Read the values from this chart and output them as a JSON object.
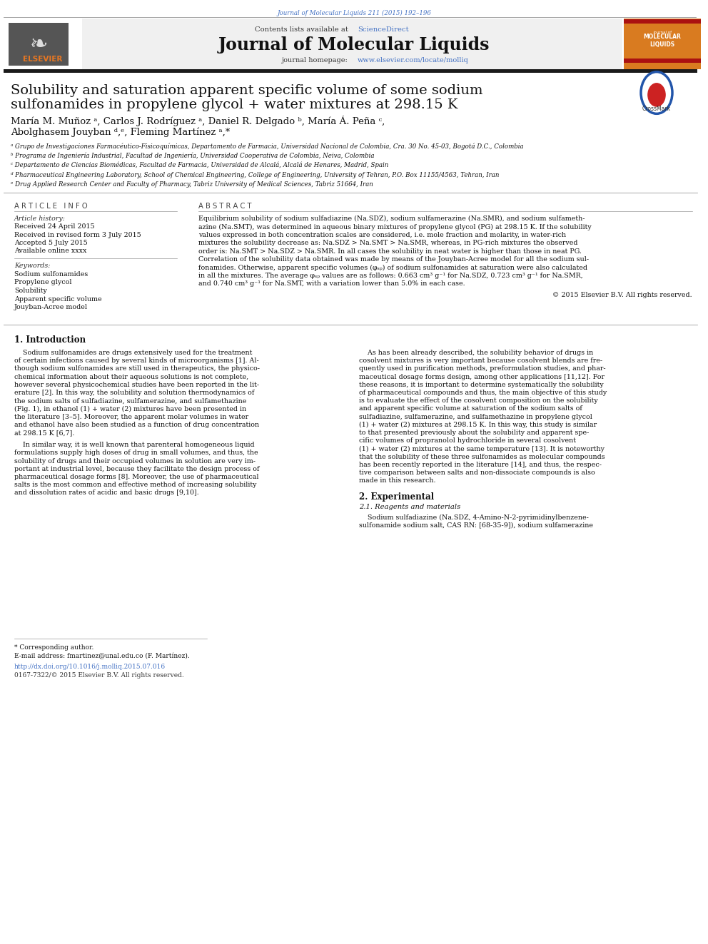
{
  "page_width": 9.92,
  "page_height": 13.23,
  "background_color": "#ffffff",
  "journal_ref": "Journal of Molecular Liquids 211 (2015) 192–196",
  "journal_ref_color": "#4472c4",
  "header_bg": "#e8e8e8",
  "header_text": "Contents lists available at",
  "sciencedirect_text": "ScienceDirect",
  "sciencedirect_color": "#4472c4",
  "journal_title": "Journal of Molecular Liquids",
  "journal_homepage_label": "journal homepage:",
  "journal_homepage_url": "www.elsevier.com/locate/molliq",
  "journal_homepage_color": "#4472c4",
  "article_title_line1": "Solubility and saturation apparent specific volume of some sodium",
  "article_title_line2": "sulfonamides in propylene glycol + water mixtures at 298.15 K",
  "authors_line1": "María M. Muñoz ᵃ, Carlos J. Rodríguez ᵃ, Daniel R. Delgado ᵇ, María Á. Peña ᶜ,",
  "authors_line2": "Abolghasem Jouyban ᵈ,ᵉ, Fleming Martínez ᵃ,*",
  "affil_a": "ᵃ Grupo de Investigaciones Farmacéutico-Fisicoquímicas, Departamento de Farmacia, Universidad Nacional de Colombia, Cra. 30 No. 45-03, Bogotá D.C., Colombia",
  "affil_b": "ᵇ Programa de Ingeniería Industrial, Facultad de Ingeniería, Universidad Cooperativa de Colombia, Neiva, Colombia",
  "affil_c": "ᶜ Departamento de Ciencias Biomédicas, Facultad de Farmacia, Universidad de Alcalá, Alcalá de Henares, Madrid, Spain",
  "affil_d": "ᵈ Pharmaceutical Engineering Laboratory, School of Chemical Engineering, College of Engineering, University of Tehran, P.O. Box 11155/4563, Tehran, Iran",
  "affil_e": "ᵉ Drug Applied Research Center and Faculty of Pharmacy, Tabriz University of Medical Sciences, Tabriz 51664, Iran",
  "article_info_header": "A R T I C L E   I N F O",
  "abstract_header": "A B S T R A C T",
  "article_history_label": "Article history:",
  "received": "Received 24 April 2015",
  "revised": "Received in revised form 3 July 2015",
  "accepted": "Accepted 5 July 2015",
  "available": "Available online xxxx",
  "keywords_label": "Keywords:",
  "kw1": "Sodium sulfonamides",
  "kw2": "Propylene glycol",
  "kw3": "Solubility",
  "kw4": "Apparent specific volume",
  "kw5": "Jouyban-Acree model",
  "abstract_lines": [
    "Equilibrium solubility of sodium sulfadiazine (Na.SDZ), sodium sulfamerazine (Na.SMR), and sodium sulfameth-",
    "azine (Na.SMT), was determined in aqueous binary mixtures of propylene glycol (PG) at 298.15 K. If the solubility",
    "values expressed in both concentration scales are considered, i.e. mole fraction and molarity, in water-rich",
    "mixtures the solubility decrease as: Na.SDZ > Na.SMT > Na.SMR, whereas, in PG-rich mixtures the observed",
    "order is: Na.SMT > Na.SDZ > Na.SMR. In all cases the solubility in neat water is higher than those in neat PG.",
    "Correlation of the solubility data obtained was made by means of the Jouyban-Acree model for all the sodium sul-",
    "fonamides. Otherwise, apparent specific volumes (φₛₚ) of sodium sulfonamides at saturation were also calculated",
    "in all the mixtures. The average φₛₚ values are as follows: 0.663 cm³ g⁻¹ for Na.SDZ, 0.723 cm³ g⁻¹ for Na.SMR,",
    "and 0.740 cm³ g⁻¹ for Na.SMT, with a variation lower than 5.0% in each case."
  ],
  "copyright": "© 2015 Elsevier B.V. All rights reserved.",
  "intro_header": "1. Introduction",
  "intro1_lines": [
    "    Sodium sulfonamides are drugs extensively used for the treatment",
    "of certain infections caused by several kinds of microorganisms [1]. Al-",
    "though sodium sulfonamides are still used in therapeutics, the physico-",
    "chemical information about their aqueous solutions is not complete,",
    "however several physicochemical studies have been reported in the lit-",
    "erature [2]. In this way, the solubility and solution thermodynamics of",
    "the sodium salts of sulfadiazine, sulfamerazine, and sulfamethazine",
    "(Fig. 1), in ethanol (1) + water (2) mixtures have been presented in",
    "the literature [3–5]. Moreover, the apparent molar volumes in water",
    "and ethanol have also been studied as a function of drug concentration",
    "at 298.15 K [6,7]."
  ],
  "intro1b_lines": [
    "    In similar way, it is well known that parenteral homogeneous liquid",
    "formulations supply high doses of drug in small volumes, and thus, the",
    "solubility of drugs and their occupied volumes in solution are very im-",
    "portant at industrial level, because they facilitate the design process of",
    "pharmaceutical dosage forms [8]. Moreover, the use of pharmaceutical",
    "salts is the most common and effective method of increasing solubility",
    "and dissolution rates of acidic and basic drugs [9,10]."
  ],
  "intro2_lines": [
    "    As has been already described, the solubility behavior of drugs in",
    "cosolvent mixtures is very important because cosolvent blends are fre-",
    "quently used in purification methods, preformulation studies, and phar-",
    "maceutical dosage forms design, among other applications [11,12]. For",
    "these reasons, it is important to determine systematically the solubility",
    "of pharmaceutical compounds and thus, the main objective of this study",
    "is to evaluate the effect of the cosolvent composition on the solubility",
    "and apparent specific volume at saturation of the sodium salts of",
    "sulfadiazine, sulfamerazine, and sulfamethazine in propylene glycol",
    "(1) + water (2) mixtures at 298.15 K. In this way, this study is similar",
    "to that presented previously about the solubility and apparent spe-",
    "cific volumes of propranolol hydrochloride in several cosolvent",
    "(1) + water (2) mixtures at the same temperature [13]. It is noteworthy",
    "that the solubility of these three sulfonamides as molecular compounds",
    "has been recently reported in the literature [14], and thus, the respec-",
    "tive comparison between salts and non-dissociate compounds is also",
    "made in this research."
  ],
  "experimental_header": "2. Experimental",
  "experimental_subheader": "2.1. Reagents and materials",
  "exp_lines": [
    "    Sodium sulfadiazine (Na.SDZ, 4-Amino-N-2-pyrimidinylbenzene-",
    "sulfonamide sodium salt, CAS RN: [68-35-9]), sodium sulfamerazine"
  ],
  "corresponding_note": "* Corresponding author.",
  "email_note": "E-mail address: fmartinez@unal.edu.co (F. Martínez).",
  "doi": "http://dx.doi.org/10.1016/j.molliq.2015.07.016",
  "issn": "0167-7322/© 2015 Elsevier B.V. All rights reserved.",
  "elsevier_orange": "#e87722",
  "crossmark_blue": "#2255aa",
  "crossmark_red": "#cc2222",
  "thick_bar_color": "#1a1a1a",
  "line_color": "#999999"
}
